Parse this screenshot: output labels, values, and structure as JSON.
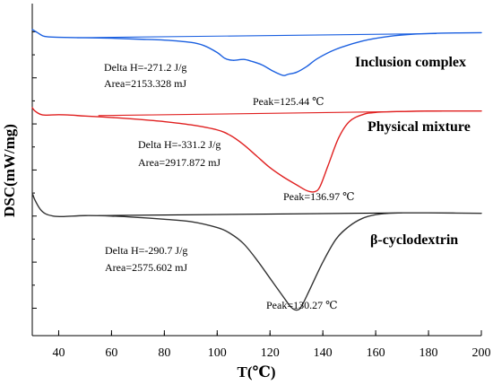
{
  "chart_data": {
    "type": "line",
    "xlabel": "T(℃)",
    "ylabel": "DSC(mW/mg)",
    "xlim": [
      30,
      200
    ],
    "x_ticks": [
      40,
      60,
      80,
      100,
      120,
      140,
      160,
      180,
      200
    ],
    "y_ticks_labeled": false,
    "grid": false,
    "legend": "none",
    "series": [
      {
        "name": "Inclusion complex",
        "color": "#1a5fe0",
        "x": [
          30,
          32,
          34,
          36,
          40,
          50,
          60,
          70,
          80,
          90,
          95,
          100,
          103,
          106,
          110,
          113,
          117,
          121,
          124,
          125.44,
          127,
          130,
          134,
          138,
          145,
          155,
          165,
          175,
          185,
          200
        ],
        "y": [
          0.05,
          -0.02,
          -0.09,
          -0.11,
          -0.12,
          -0.13,
          -0.14,
          -0.16,
          -0.18,
          -0.23,
          -0.3,
          -0.45,
          -0.58,
          -0.62,
          -0.6,
          -0.64,
          -0.72,
          -0.85,
          -0.93,
          -0.95,
          -0.92,
          -0.88,
          -0.75,
          -0.58,
          -0.38,
          -0.2,
          -0.1,
          -0.05,
          -0.03,
          -0.02
        ],
        "baseline": {
          "x": [
            47,
            183
          ],
          "y": [
            -0.13,
            -0.04
          ]
        }
      },
      {
        "name": "Physical mixture",
        "color": "#e02020",
        "x": [
          30,
          31,
          33,
          35,
          40,
          45,
          50,
          60,
          70,
          80,
          90,
          100,
          105,
          110,
          115,
          120,
          125,
          130,
          134,
          136.97,
          139,
          142,
          146,
          150,
          155,
          160,
          170,
          180,
          200
        ],
        "y": [
          -1.65,
          -1.72,
          -1.79,
          -1.81,
          -1.8,
          -1.81,
          -1.83,
          -1.86,
          -1.9,
          -1.95,
          -2.02,
          -2.13,
          -2.25,
          -2.45,
          -2.7,
          -2.95,
          -3.15,
          -3.32,
          -3.45,
          -3.47,
          -3.35,
          -2.9,
          -2.3,
          -1.95,
          -1.8,
          -1.75,
          -1.73,
          -1.72,
          -1.72
        ],
        "baseline": {
          "x": [
            55,
            185
          ],
          "y": [
            -1.82,
            -1.72
          ]
        }
      },
      {
        "name": "β-cyclodextrin",
        "color": "#333333",
        "x": [
          30,
          31,
          33,
          35,
          38,
          42,
          50,
          60,
          70,
          80,
          90,
          100,
          105,
          110,
          115,
          120,
          125,
          128,
          130.27,
          132,
          135,
          140,
          145,
          150,
          155,
          160,
          165,
          170,
          180,
          200
        ],
        "y": [
          -3.5,
          -3.65,
          -3.85,
          -3.95,
          -4.0,
          -4.01,
          -3.99,
          -4.0,
          -4.03,
          -4.07,
          -4.12,
          -4.25,
          -4.38,
          -4.6,
          -4.95,
          -5.35,
          -5.75,
          -5.98,
          -6.04,
          -5.95,
          -5.6,
          -5.0,
          -4.5,
          -4.22,
          -4.05,
          -3.97,
          -3.94,
          -3.93,
          -3.93,
          -3.94
        ],
        "baseline": {
          "x": [
            55,
            170
          ],
          "y": [
            -3.99,
            -3.93
          ]
        }
      }
    ],
    "curve_labels": [
      "Inclusion complex",
      "Physical mixture",
      "β-cyclodextrin"
    ],
    "annotations": [
      {
        "delta_h": "Delta H=-271.2 J/g",
        "area": "Area=2153.328 mJ",
        "peak": "Peak=125.44 ℃"
      },
      {
        "delta_h": "Delta H=-331.2 J/g",
        "area": "Area=2917.872 mJ",
        "peak": "Peak=136.97 ℃"
      },
      {
        "delta_h": "Delta H=-290.7 J/g",
        "area": "Area=2575.602 mJ",
        "peak": "Peak=130.27 ℃"
      }
    ]
  }
}
